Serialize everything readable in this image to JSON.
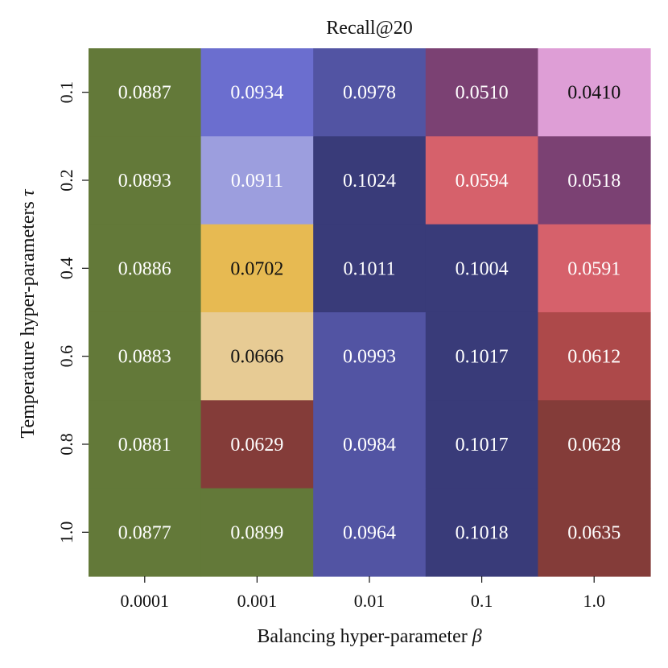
{
  "chart_data": {
    "type": "heatmap",
    "title": "Recall@20",
    "xlabel": "Balancing hyper-parameter",
    "xlabel_symbol": "β",
    "ylabel": "Temperature hyper-parameters",
    "ylabel_symbol": "τ",
    "x_categories": [
      "0.0001",
      "0.001",
      "0.01",
      "0.1",
      "1.0"
    ],
    "y_categories": [
      "0.1",
      "0.2",
      "0.4",
      "0.6",
      "0.8",
      "1.0"
    ],
    "values": [
      [
        "0.0887",
        "0.0934",
        "0.0978",
        "0.0510",
        "0.0410"
      ],
      [
        "0.0893",
        "0.0911",
        "0.1024",
        "0.0594",
        "0.0518"
      ],
      [
        "0.0886",
        "0.0702",
        "0.1011",
        "0.1004",
        "0.0591"
      ],
      [
        "0.0883",
        "0.0666",
        "0.0993",
        "0.1017",
        "0.0612"
      ],
      [
        "0.0881",
        "0.0629",
        "0.0984",
        "0.1017",
        "0.0628"
      ],
      [
        "0.0877",
        "0.0899",
        "0.0964",
        "0.1018",
        "0.0635"
      ]
    ],
    "cell_colors": [
      [
        "#637939",
        "#6b6ecf",
        "#5254a3",
        "#7b4173",
        "#de9ed6"
      ],
      [
        "#637939",
        "#9c9ede",
        "#393b79",
        "#d6616b",
        "#7b4173"
      ],
      [
        "#637939",
        "#e7ba52",
        "#393b79",
        "#393b79",
        "#d6616b"
      ],
      [
        "#637939",
        "#e7cb94",
        "#5254a3",
        "#393b79",
        "#ad494a"
      ],
      [
        "#637939",
        "#843c39",
        "#5254a3",
        "#393b79",
        "#843c39"
      ],
      [
        "#637939",
        "#637939",
        "#5254a3",
        "#393b79",
        "#843c39"
      ]
    ],
    "text_colors": [
      [
        "#ffffff",
        "#ffffff",
        "#ffffff",
        "#ffffff",
        "#111111"
      ],
      [
        "#ffffff",
        "#ffffff",
        "#ffffff",
        "#ffffff",
        "#ffffff"
      ],
      [
        "#ffffff",
        "#111111",
        "#ffffff",
        "#ffffff",
        "#ffffff"
      ],
      [
        "#ffffff",
        "#111111",
        "#ffffff",
        "#ffffff",
        "#ffffff"
      ],
      [
        "#ffffff",
        "#ffffff",
        "#ffffff",
        "#ffffff",
        "#ffffff"
      ],
      [
        "#ffffff",
        "#ffffff",
        "#ffffff",
        "#ffffff",
        "#ffffff"
      ]
    ],
    "grid": false,
    "legend": "none"
  }
}
